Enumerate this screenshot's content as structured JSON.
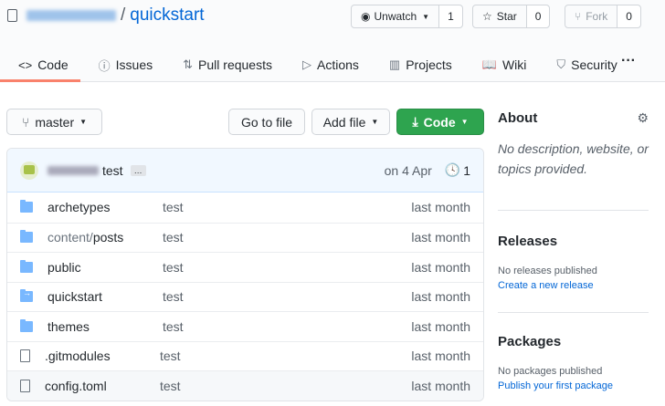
{
  "repo": {
    "owner": "takeumir",
    "separator": "/",
    "name": "quickstart"
  },
  "actions": {
    "watch": {
      "label": "Unwatch",
      "count": "1"
    },
    "star": {
      "label": "Star",
      "count": "0"
    },
    "fork": {
      "label": "Fork",
      "count": "0"
    }
  },
  "tabs": [
    {
      "label": "Code",
      "icon": "code-icon"
    },
    {
      "label": "Issues",
      "icon": "issue-icon"
    },
    {
      "label": "Pull requests",
      "icon": "pull-request-icon"
    },
    {
      "label": "Actions",
      "icon": "play-icon"
    },
    {
      "label": "Projects",
      "icon": "project-icon"
    },
    {
      "label": "Wiki",
      "icon": "book-icon"
    },
    {
      "label": "Security",
      "icon": "shield-icon"
    }
  ],
  "more": "···",
  "toolbar": {
    "branch": "master",
    "goto": "Go to file",
    "add": "Add file",
    "code": "Code"
  },
  "commit": {
    "author": "takeumir",
    "message": "test",
    "ellipsis": "…",
    "date": "on 4 Apr",
    "count": "1"
  },
  "files": [
    {
      "name": "archetypes",
      "type": "folder",
      "message": "test",
      "age": "last month"
    },
    {
      "name": "content/posts",
      "type": "folder",
      "message": "test",
      "age": "last month"
    },
    {
      "name": "public",
      "type": "folder",
      "message": "test",
      "age": "last month"
    },
    {
      "name": "quickstart",
      "type": "submodule",
      "message": "test",
      "age": "last month"
    },
    {
      "name": "themes",
      "type": "folder",
      "message": "test",
      "age": "last month"
    },
    {
      "name": ".gitmodules",
      "type": "file",
      "message": "test",
      "age": "last month"
    },
    {
      "name": "config.toml",
      "type": "file",
      "message": "test",
      "age": "last month"
    }
  ],
  "about": {
    "title": "About",
    "text": "No description, website, or topics provided."
  },
  "releases": {
    "title": "Releases",
    "text": "No releases published",
    "link": "Create a new release"
  },
  "packages": {
    "title": "Packages",
    "text": "No packages published",
    "link": "Publish your first package"
  }
}
